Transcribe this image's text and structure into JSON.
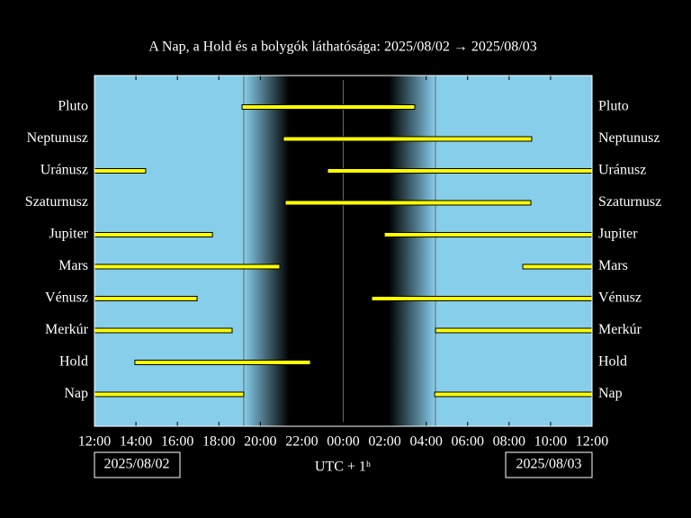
{
  "chart_data": {
    "type": "gantt",
    "title": "A Nap, a Hold és a bolygók láthatósága: 2025/08/02 → 2025/08/03",
    "x_label": "UTC + 1ʰ",
    "start_date": "2025/08/02",
    "end_date": "2025/08/03",
    "xlim": [
      12,
      36
    ],
    "xticks": [
      {
        "value": 12,
        "label": "12:00"
      },
      {
        "value": 14,
        "label": "14:00"
      },
      {
        "value": 16,
        "label": "16:00"
      },
      {
        "value": 18,
        "label": "18:00"
      },
      {
        "value": 20,
        "label": "20:00"
      },
      {
        "value": 22,
        "label": "22:00"
      },
      {
        "value": 24,
        "label": "00:00"
      },
      {
        "value": 26,
        "label": "02:00"
      },
      {
        "value": 28,
        "label": "04:00"
      },
      {
        "value": 30,
        "label": "06:00"
      },
      {
        "value": 32,
        "label": "08:00"
      },
      {
        "value": 34,
        "label": "10:00"
      },
      {
        "value": 36,
        "label": "12:00"
      }
    ],
    "sunset": 19.2,
    "night_start": 21.4,
    "night_end": 26.2,
    "sunrise": 28.45,
    "midnight": 24,
    "day_color": "#87ceeb",
    "night_color": "#000000",
    "bar_color": "#ffff00",
    "series": [
      {
        "name": "Pluto",
        "segments": [
          [
            19.12,
            27.45
          ]
        ]
      },
      {
        "name": "Neptunusz",
        "segments": [
          [
            21.11,
            33.09
          ]
        ]
      },
      {
        "name": "Uránusz",
        "segments": [
          [
            12,
            14.47
          ],
          [
            23.24,
            36
          ]
        ]
      },
      {
        "name": "Szaturnusz",
        "segments": [
          [
            21.2,
            33.05
          ]
        ]
      },
      {
        "name": "Jupiter",
        "segments": [
          [
            12,
            17.69
          ],
          [
            25.98,
            36
          ]
        ]
      },
      {
        "name": "Mars",
        "segments": [
          [
            12,
            20.94
          ],
          [
            32.66,
            36
          ]
        ]
      },
      {
        "name": "Vénusz",
        "segments": [
          [
            12,
            16.95
          ],
          [
            25.37,
            36
          ]
        ]
      },
      {
        "name": "Merkúr",
        "segments": [
          [
            12,
            18.64
          ],
          [
            28.45,
            36
          ]
        ]
      },
      {
        "name": "Hold",
        "segments": [
          [
            13.95,
            22.42
          ]
        ]
      },
      {
        "name": "Nap",
        "segments": [
          [
            12,
            19.2
          ],
          [
            28.41,
            36
          ]
        ]
      }
    ]
  }
}
